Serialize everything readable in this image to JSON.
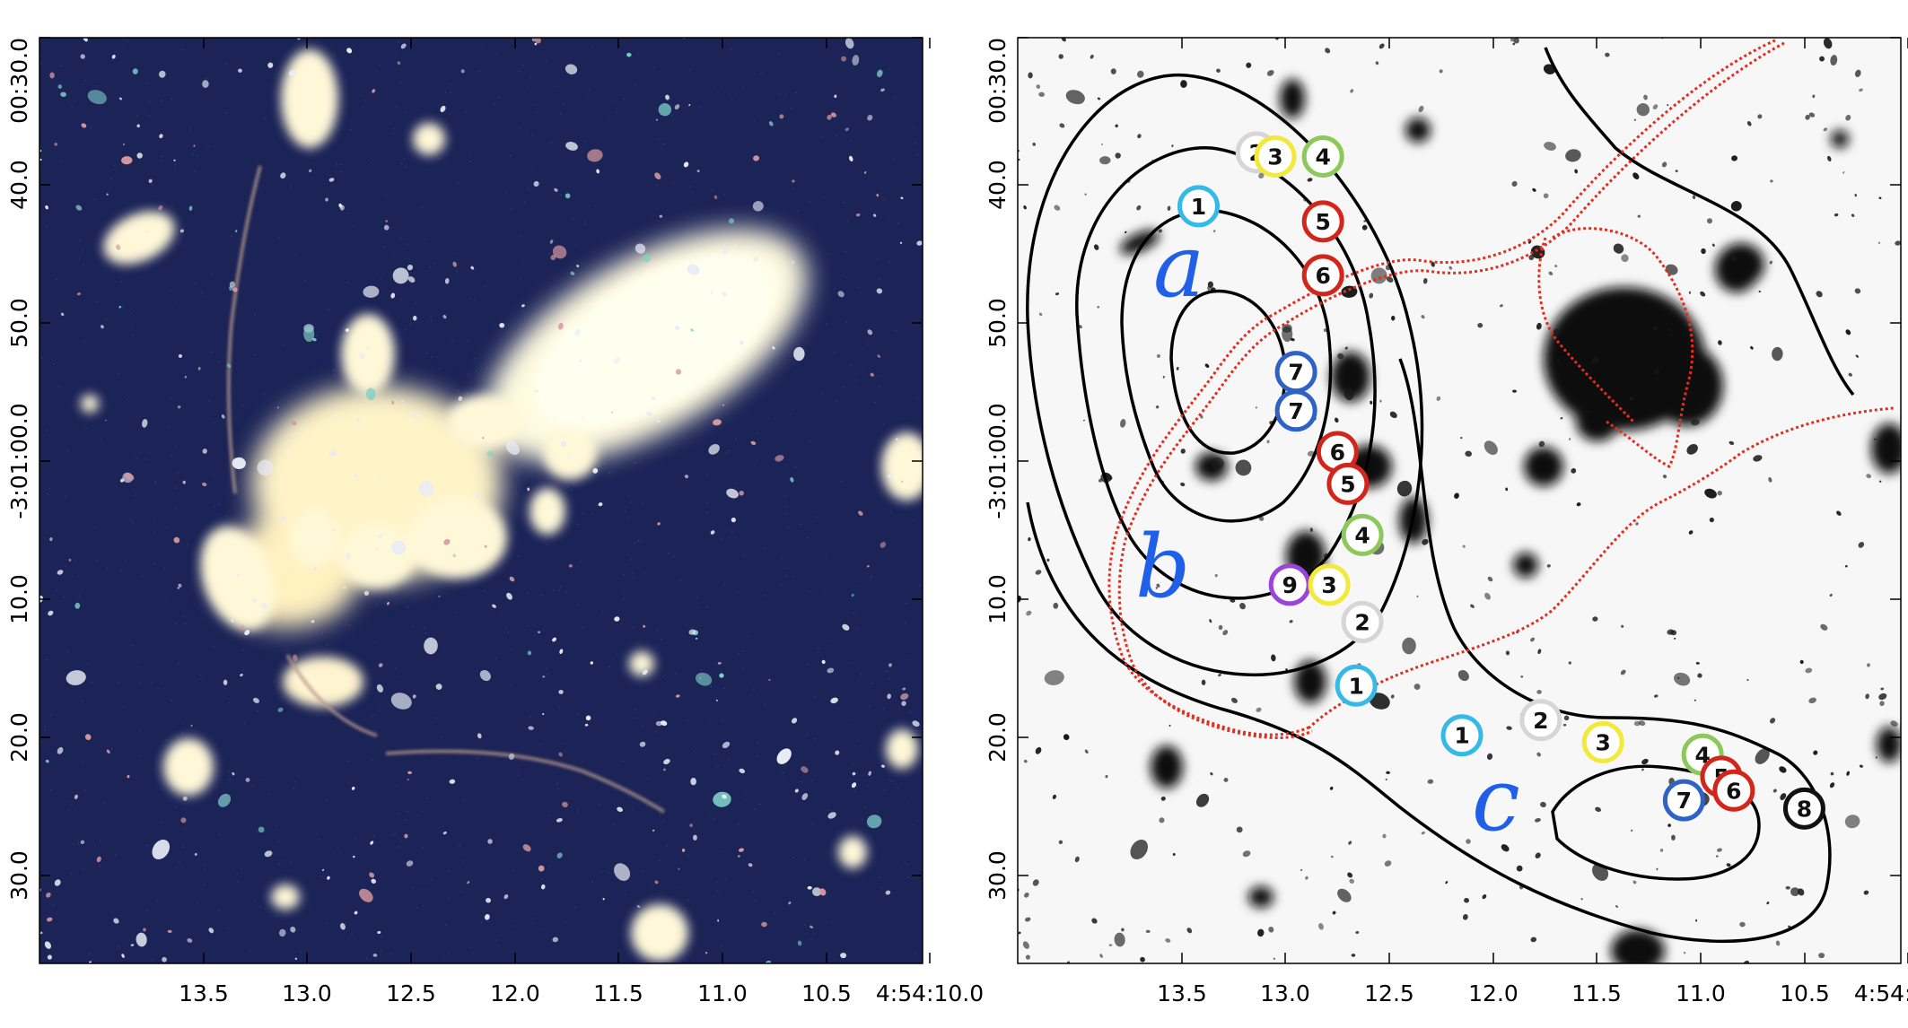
{
  "ra_ticks": [
    "13.5",
    "13.0",
    "12.5",
    "12.0",
    "11.5",
    "11.0",
    "10.5",
    "4:54:10.0"
  ],
  "dec_ticks": [
    "00:30.0",
    "40.0",
    "50.0",
    "-3:01:00.0",
    "10.0",
    "20.0",
    "30.0"
  ],
  "group_labels": [
    "a",
    "b",
    "c"
  ],
  "marker_colors": {
    "1": "#35b9e6",
    "2": "#d6d6d6",
    "3": "#f2e93b",
    "4": "#8cc85a",
    "5": "#d2261c",
    "6": "#d2261c",
    "7": "#2f62c6",
    "8": "#111111",
    "9": "#9b45d8"
  },
  "markers": [
    {
      "label": "1",
      "ra": 13.42,
      "dec_arcsec": 42.2
    },
    {
      "label": "2",
      "ra": 13.14,
      "dec_arcsec": 38.3
    },
    {
      "label": "3",
      "ra": 13.05,
      "dec_arcsec": 38.6
    },
    {
      "label": "4",
      "ra": 12.82,
      "dec_arcsec": 38.6
    },
    {
      "label": "5",
      "ra": 12.82,
      "dec_arcsec": 43.3
    },
    {
      "label": "6",
      "ra": 12.82,
      "dec_arcsec": 47.2
    },
    {
      "label": "7",
      "ra": 12.95,
      "dec_arcsec": 54.2
    },
    {
      "label": "7",
      "ra": 12.95,
      "dec_arcsec": 57.0
    },
    {
      "label": "6",
      "ra": 12.75,
      "dec_arcsec": 60.0
    },
    {
      "label": "5",
      "ra": 12.7,
      "dec_arcsec": 62.3
    },
    {
      "label": "4",
      "ra": 12.63,
      "dec_arcsec": 66.0
    },
    {
      "label": "9",
      "ra": 12.98,
      "dec_arcsec": 69.6
    },
    {
      "label": "3",
      "ra": 12.79,
      "dec_arcsec": 69.6
    },
    {
      "label": "2",
      "ra": 12.63,
      "dec_arcsec": 72.3
    },
    {
      "label": "1",
      "ra": 12.66,
      "dec_arcsec": 76.9
    },
    {
      "label": "1",
      "ra": 12.15,
      "dec_arcsec": 80.5
    },
    {
      "label": "2",
      "ra": 11.77,
      "dec_arcsec": 79.4
    },
    {
      "label": "3",
      "ra": 11.47,
      "dec_arcsec": 81.0
    },
    {
      "label": "4",
      "ra": 10.99,
      "dec_arcsec": 81.9
    },
    {
      "label": "5",
      "ra": 10.9,
      "dec_arcsec": 83.5
    },
    {
      "label": "6",
      "ra": 10.84,
      "dec_arcsec": 84.5
    },
    {
      "label": "7",
      "ra": 11.08,
      "dec_arcsec": 85.2
    },
    {
      "label": "8",
      "ra": 10.5,
      "dec_arcsec": 85.8
    }
  ]
}
